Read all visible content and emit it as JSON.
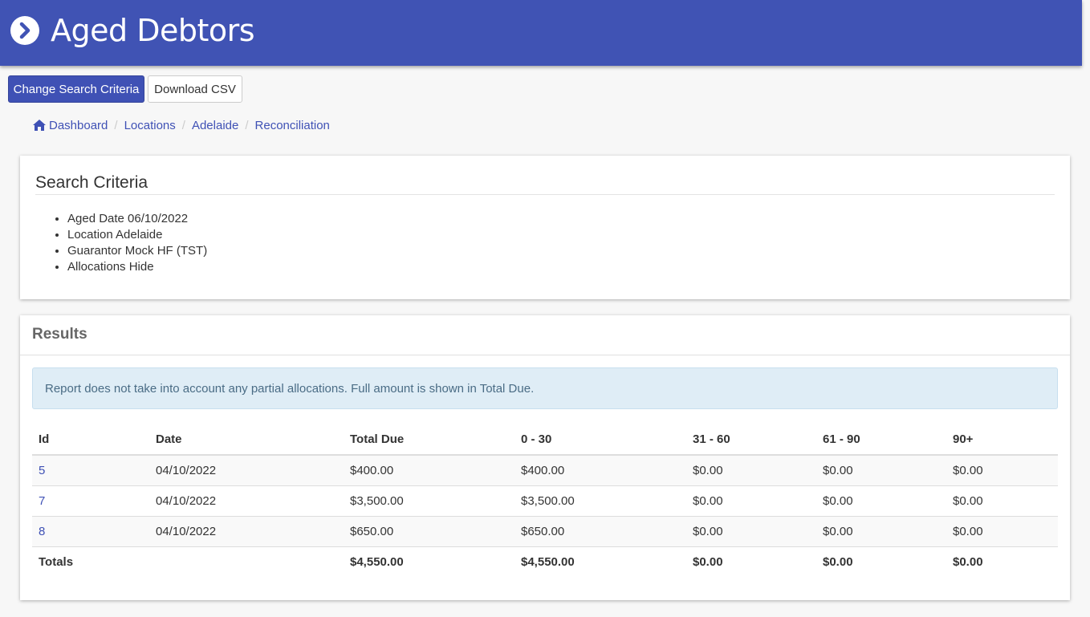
{
  "header": {
    "title": "Aged Debtors"
  },
  "toolbar": {
    "change_search_label": "Change Search Criteria",
    "download_csv_label": "Download CSV"
  },
  "breadcrumb": [
    "Dashboard",
    "Locations",
    "Adelaide",
    "Reconciliation"
  ],
  "search_criteria": {
    "title": "Search Criteria",
    "items": [
      "Aged Date 06/10/2022",
      "Location Adelaide",
      "Guarantor Mock HF (TST)",
      "Allocations Hide"
    ]
  },
  "results": {
    "title": "Results",
    "alert": "Report does not take into account any partial allocations. Full amount is shown in Total Due.",
    "columns": [
      "Id",
      "Date",
      "Total Due",
      "0 - 30",
      "31 - 60",
      "61 - 90",
      "90+"
    ],
    "rows": [
      [
        "5",
        "04/10/2022",
        "$400.00",
        "$400.00",
        "$0.00",
        "$0.00",
        "$0.00"
      ],
      [
        "7",
        "04/10/2022",
        "$3,500.00",
        "$3,500.00",
        "$0.00",
        "$0.00",
        "$0.00"
      ],
      [
        "8",
        "04/10/2022",
        "$650.00",
        "$650.00",
        "$0.00",
        "$0.00",
        "$0.00"
      ]
    ],
    "totals": [
      "Totals",
      "",
      "$4,550.00",
      "$4,550.00",
      "$0.00",
      "$0.00",
      "$0.00"
    ]
  },
  "colors": {
    "brand": "#4053b4",
    "link": "#3f51b5",
    "alert_bg": "#dfedf6"
  },
  "icons": {
    "header": "chevron-circle-right-icon",
    "breadcrumb_home": "home-icon"
  }
}
